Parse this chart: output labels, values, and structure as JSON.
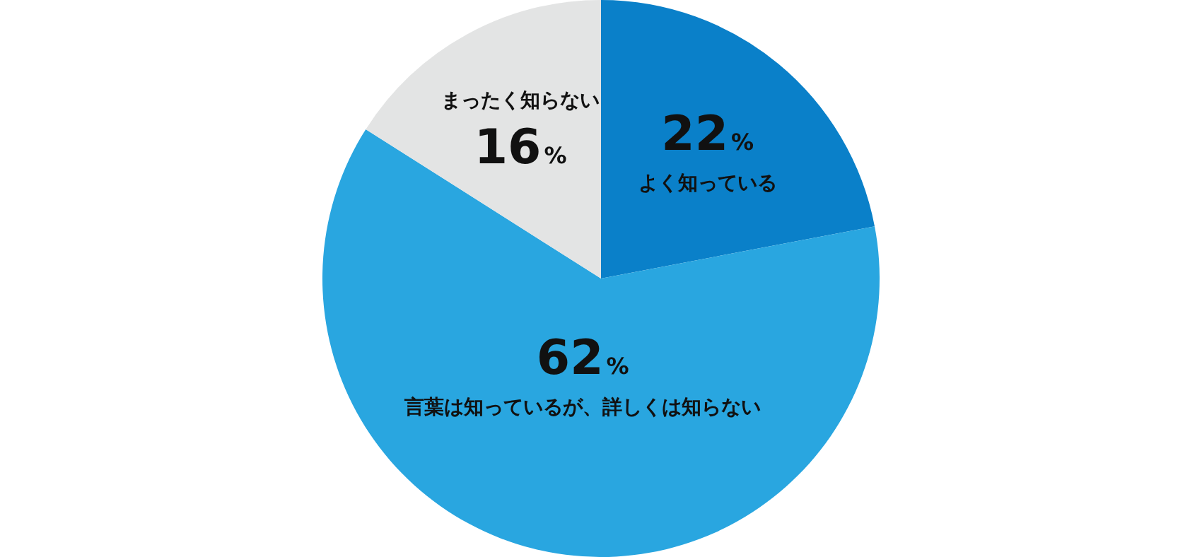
{
  "chart_data": {
    "type": "pie",
    "categories": [
      "よく知っている",
      "言葉は知っているが、詳しくは知らない",
      "まったく知らない"
    ],
    "values": [
      22,
      62,
      16
    ],
    "colors": [
      "#0a80c9",
      "#29a6e0",
      "#e3e4e4"
    ],
    "value_labels": [
      "22%",
      "62%",
      "16%"
    ],
    "legend": false
  }
}
